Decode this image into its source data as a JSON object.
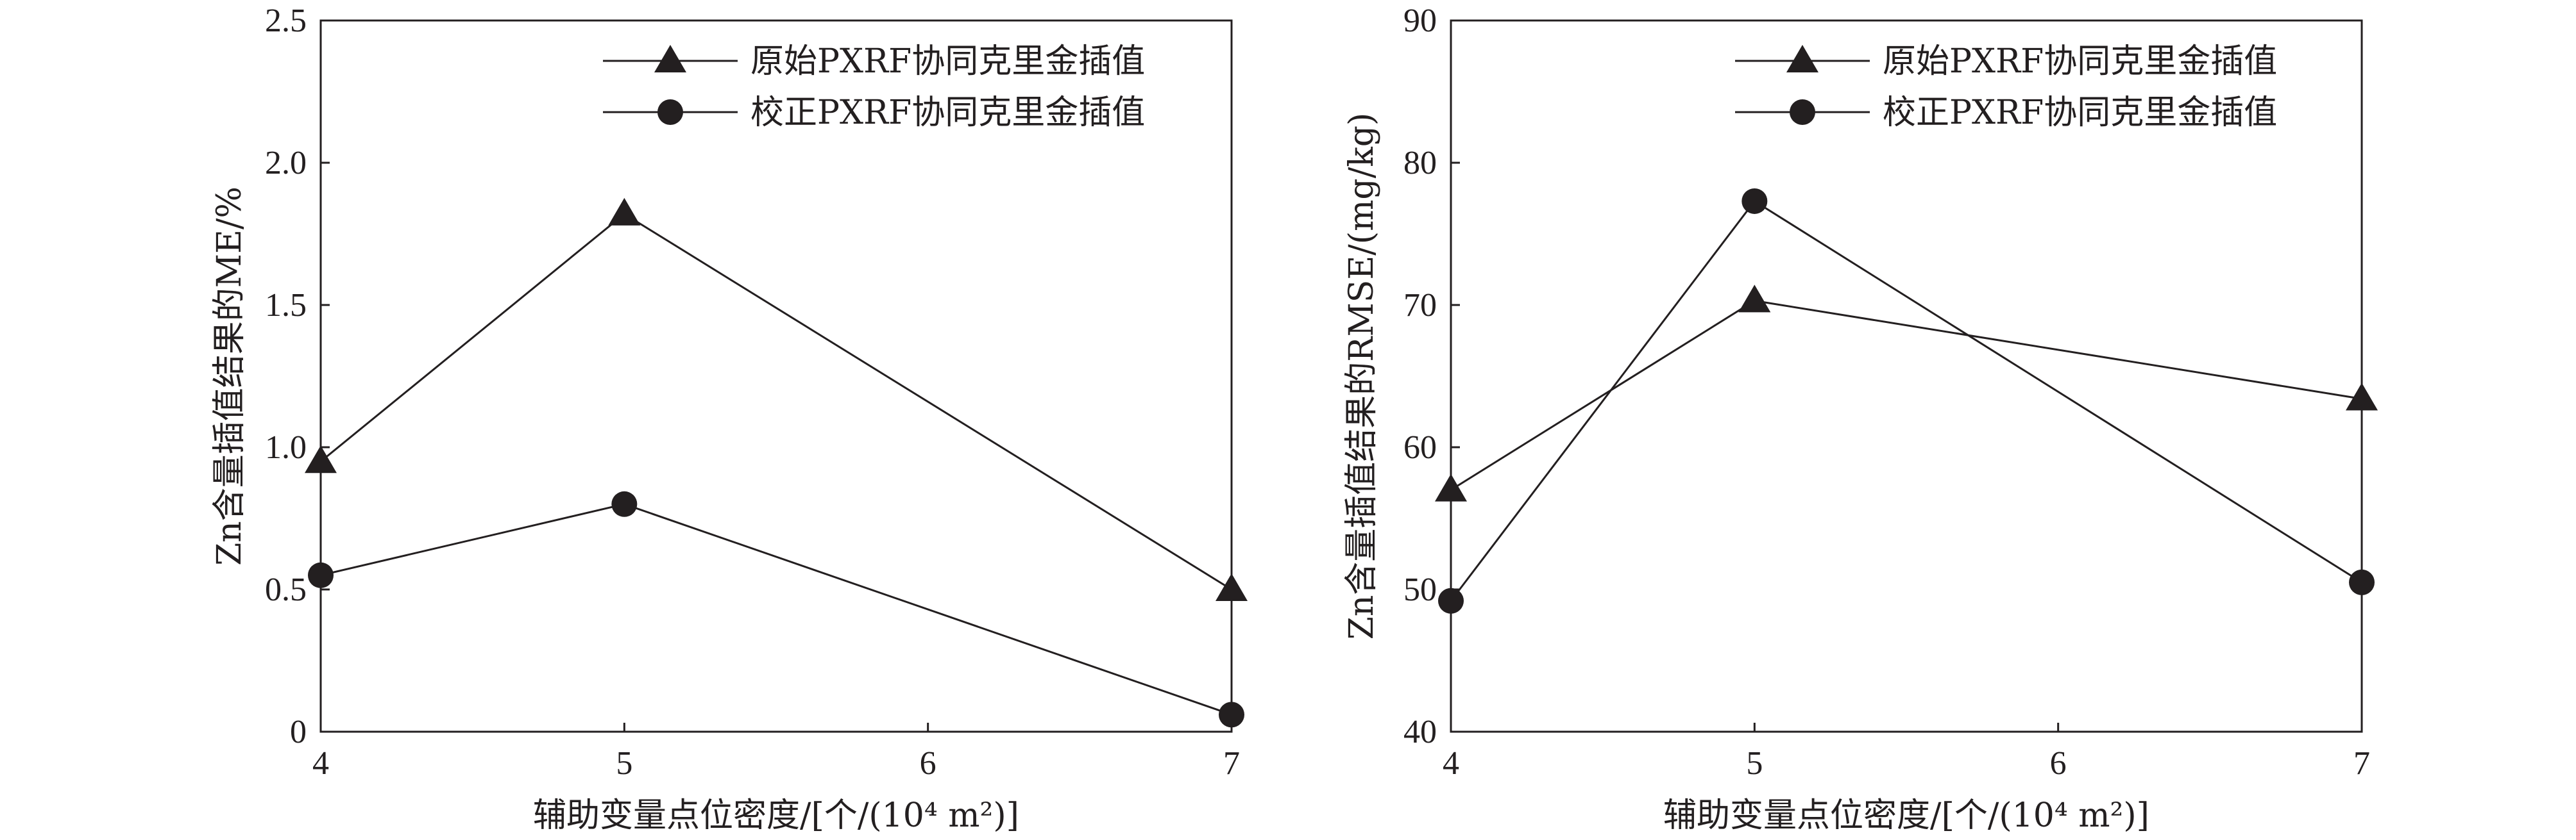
{
  "chart_data": [
    {
      "type": "line",
      "xlabel": "辅助变量点位密度/[个/(10⁴ m²)]",
      "ylabel": "Zn含量插值结果的ME/%",
      "xlim": [
        4,
        7
      ],
      "ylim": [
        0,
        2.5
      ],
      "x_ticks": [
        "4",
        "5",
        "6",
        "7"
      ],
      "y_ticks": [
        "0",
        "0.5",
        "1.0",
        "1.5",
        "2.0",
        "2.5"
      ],
      "x": [
        4,
        5,
        7
      ],
      "legend_position": "top-right",
      "grid": false,
      "series": [
        {
          "name": "原始PXRF协同克里金插值",
          "marker": "triangle",
          "values": [
            0.95,
            1.82,
            0.5
          ]
        },
        {
          "name": "校正PXRF协同克里金插值",
          "marker": "circle",
          "values": [
            0.55,
            0.8,
            0.06
          ]
        }
      ]
    },
    {
      "type": "line",
      "xlabel": "辅助变量点位密度/[个/(10⁴ m²)]",
      "ylabel": "Zn含量插值结果的RMSE/(mg/kg)",
      "xlim": [
        4,
        7
      ],
      "ylim": [
        40,
        90
      ],
      "x_ticks": [
        "4",
        "5",
        "6",
        "7"
      ],
      "y_ticks": [
        "40",
        "50",
        "60",
        "70",
        "80",
        "90"
      ],
      "x": [
        4,
        5,
        7
      ],
      "legend_position": "top-right",
      "grid": false,
      "series": [
        {
          "name": "原始PXRF协同克里金插值",
          "marker": "triangle",
          "values": [
            57,
            70.3,
            63.4
          ]
        },
        {
          "name": "校正PXRF协同克里金插值",
          "marker": "circle",
          "values": [
            49.2,
            77.3,
            50.5
          ]
        }
      ]
    }
  ]
}
